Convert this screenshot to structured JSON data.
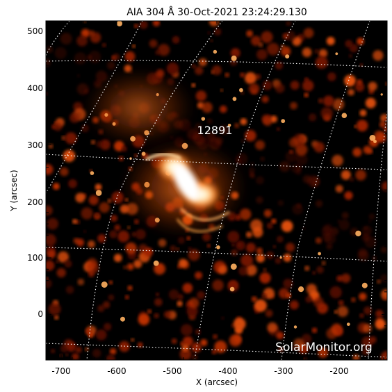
{
  "title": "AIA 304 Å 30-Oct-2021 23:24:29.130",
  "x_axis": {
    "label": "X (arcsec)",
    "ticks": [
      "-700",
      "-600",
      "-500",
      "-400",
      "-300",
      "-200"
    ]
  },
  "y_axis": {
    "label": "Y (arcsec)",
    "ticks": [
      "500",
      "400",
      "300",
      "200",
      "100",
      "0"
    ]
  },
  "active_region": {
    "label": "12891"
  },
  "watermark": "SolarMonitor.org",
  "colors": {
    "background": "#000000",
    "emission_dim": "#5a0a00",
    "emission_mid": "#c03000",
    "emission_bright": "#ff9a3a",
    "emission_peak": "#ffffff",
    "grid": "#ffffff",
    "frame": "#000000"
  }
}
